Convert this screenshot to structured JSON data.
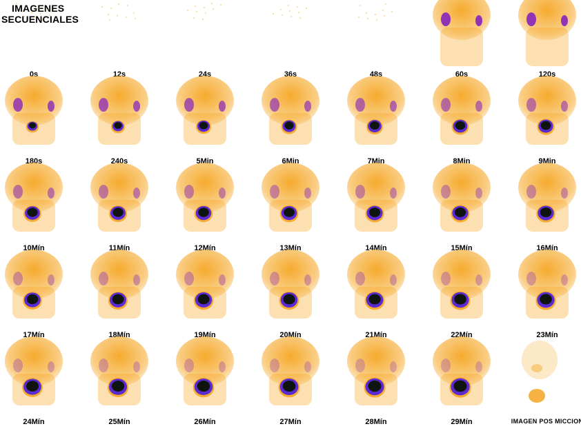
{
  "title": {
    "line1": "IMAGENES",
    "line2": "SECUENCIALES"
  },
  "colors": {
    "background": "#ffffff",
    "tracer": "#f5a623",
    "kidney": "#8b2bb8",
    "bladder_core": "#101410",
    "bladder_rim": "#5a2bd0"
  },
  "frames": [
    {
      "label": "0s",
      "bladder": 0,
      "kidney": 0
    },
    {
      "label": "12s",
      "bladder": 0,
      "kidney": 0
    },
    {
      "label": "24s",
      "bladder": 0,
      "kidney": 0
    },
    {
      "label": "36s",
      "bladder": 0,
      "kidney": 0
    },
    {
      "label": "48s",
      "bladder": 0,
      "kidney": 0
    },
    {
      "label": "60s",
      "bladder": 0,
      "kidney": 1
    },
    {
      "label": "120s",
      "bladder": 0,
      "kidney": 1
    },
    {
      "label": "180s",
      "bladder": 0.25,
      "kidney": 0.8
    },
    {
      "label": "240s",
      "bladder": 0.35,
      "kidney": 0.75
    },
    {
      "label": "5Min",
      "bladder": 0.45,
      "kidney": 0.7
    },
    {
      "label": "6Min",
      "bladder": 0.5,
      "kidney": 0.6
    },
    {
      "label": "7Min",
      "bladder": 0.55,
      "kidney": 0.55
    },
    {
      "label": "8Min",
      "bladder": 0.6,
      "kidney": 0.5
    },
    {
      "label": "9Min",
      "bladder": 0.62,
      "kidney": 0.45
    },
    {
      "label": "10Mín",
      "bladder": 0.65,
      "kidney": 0.45
    },
    {
      "label": "11Mín",
      "bladder": 0.67,
      "kidney": 0.4
    },
    {
      "label": "12Mín",
      "bladder": 0.69,
      "kidney": 0.35
    },
    {
      "label": "13Mín",
      "bladder": 0.7,
      "kidney": 0.3
    },
    {
      "label": "14Mín",
      "bladder": 0.72,
      "kidney": 0.3
    },
    {
      "label": "15Mín",
      "bladder": 0.73,
      "kidney": 0.25
    },
    {
      "label": "16Mín",
      "bladder": 0.74,
      "kidney": 0.25
    },
    {
      "label": "17Mín",
      "bladder": 0.76,
      "kidney": 0.2
    },
    {
      "label": "18Mín",
      "bladder": 0.78,
      "kidney": 0.2
    },
    {
      "label": "19Mín",
      "bladder": 0.8,
      "kidney": 0.18
    },
    {
      "label": "20Mín",
      "bladder": 0.81,
      "kidney": 0.15
    },
    {
      "label": "21Mín",
      "bladder": 0.82,
      "kidney": 0.15
    },
    {
      "label": "22Mín",
      "bladder": 0.84,
      "kidney": 0.12
    },
    {
      "label": "23Mín",
      "bladder": 0.85,
      "kidney": 0.1
    },
    {
      "label": "24Mín",
      "bladder": 0.88,
      "kidney": 0.1
    },
    {
      "label": "25Mín",
      "bladder": 0.9,
      "kidney": 0.08
    },
    {
      "label": "26Mín",
      "bladder": 0.92,
      "kidney": 0.08
    },
    {
      "label": "27Mín",
      "bladder": 0.93,
      "kidney": 0.06
    },
    {
      "label": "28Mín",
      "bladder": 0.95,
      "kidney": 0.05
    },
    {
      "label": "29Mín",
      "bladder": 0.97,
      "kidney": 0.05
    },
    {
      "label": "IMAGEN POS MICCION",
      "bladder": 0,
      "kidney": 0
    }
  ]
}
